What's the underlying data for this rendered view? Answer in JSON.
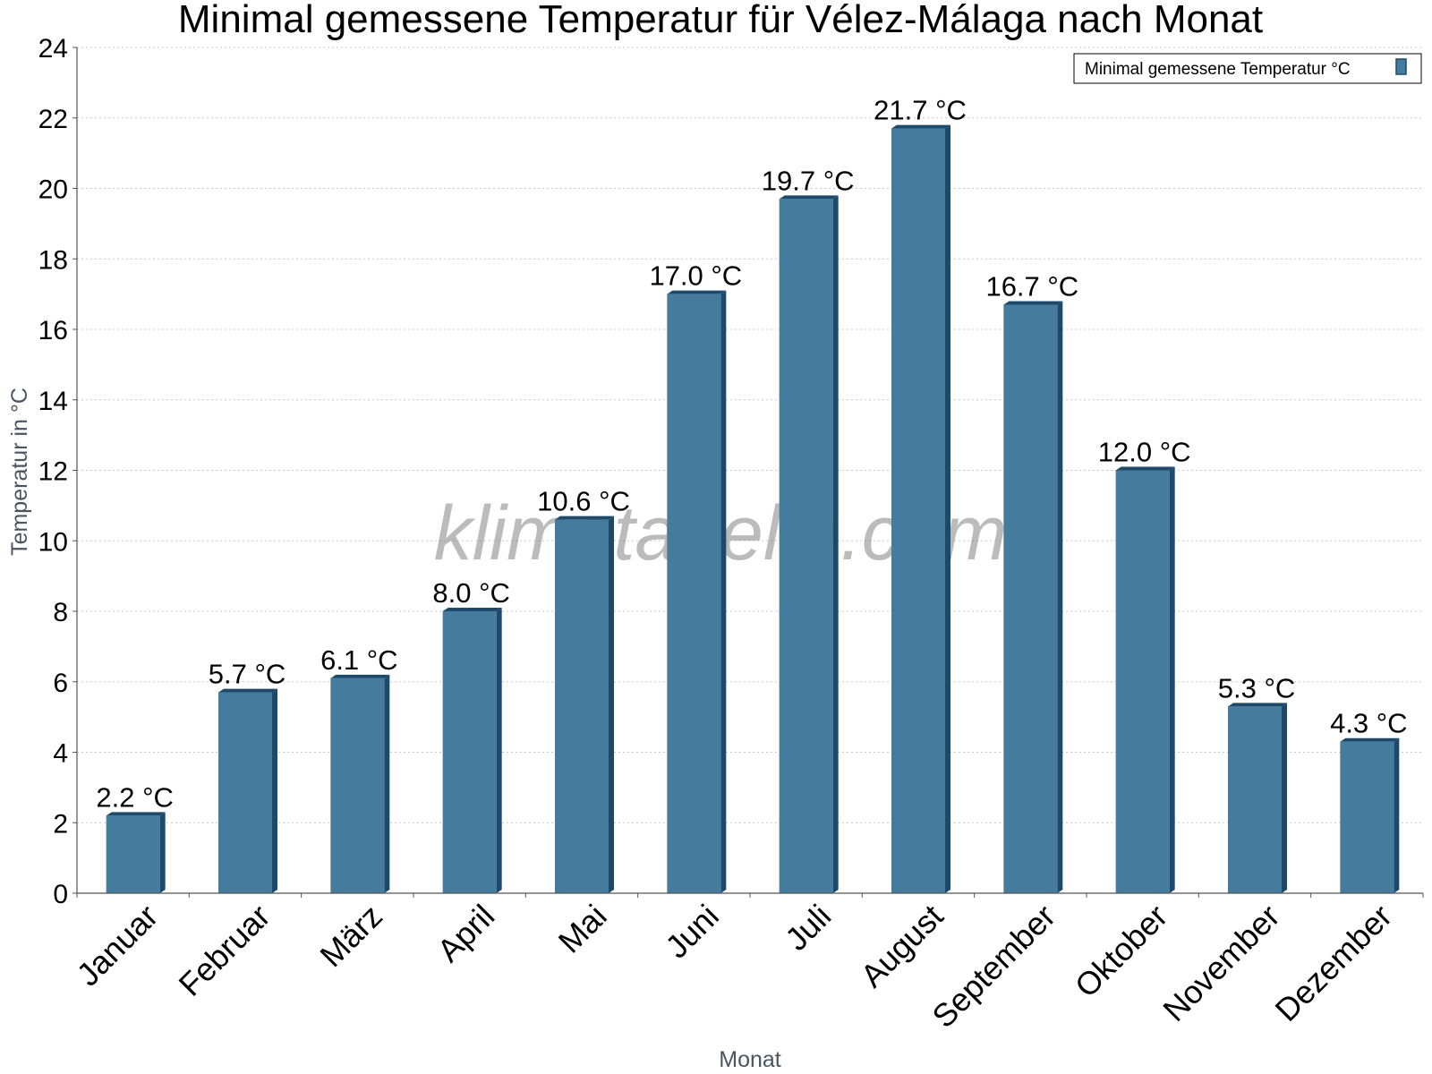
{
  "chart_data": {
    "type": "bar",
    "title": "Minimal gemessene Temperatur für Vélez-Málaga nach Monat",
    "xlabel": "Monat",
    "ylabel": "Temperatur in °C",
    "categories": [
      "Januar",
      "Februar",
      "März",
      "April",
      "Mai",
      "Juni",
      "Juli",
      "August",
      "September",
      "Oktober",
      "November",
      "Dezember"
    ],
    "series": [
      {
        "name": "Minimal gemessene Temperatur °C",
        "values": [
          2.2,
          5.7,
          6.1,
          8.0,
          10.6,
          17.0,
          19.7,
          21.7,
          16.7,
          12.0,
          5.3,
          4.3
        ],
        "labels": [
          "2.2 °C",
          "5.7 °C",
          "6.1 °C",
          "8.0 °C",
          "10.6 °C",
          "17.0 °C",
          "19.7 °C",
          "21.7 °C",
          "16.7 °C",
          "12.0 °C",
          "5.3 °C",
          "4.3 °C"
        ]
      }
    ],
    "ylim": [
      0,
      24
    ],
    "yticks": [
      0,
      2,
      4,
      6,
      8,
      10,
      12,
      14,
      16,
      18,
      20,
      22,
      24
    ],
    "grid": true,
    "legend_position": "top-right",
    "bar_color": "#457b9d",
    "bar_side_color": "#1d4a6a"
  },
  "watermark": "klimatabelle.com"
}
